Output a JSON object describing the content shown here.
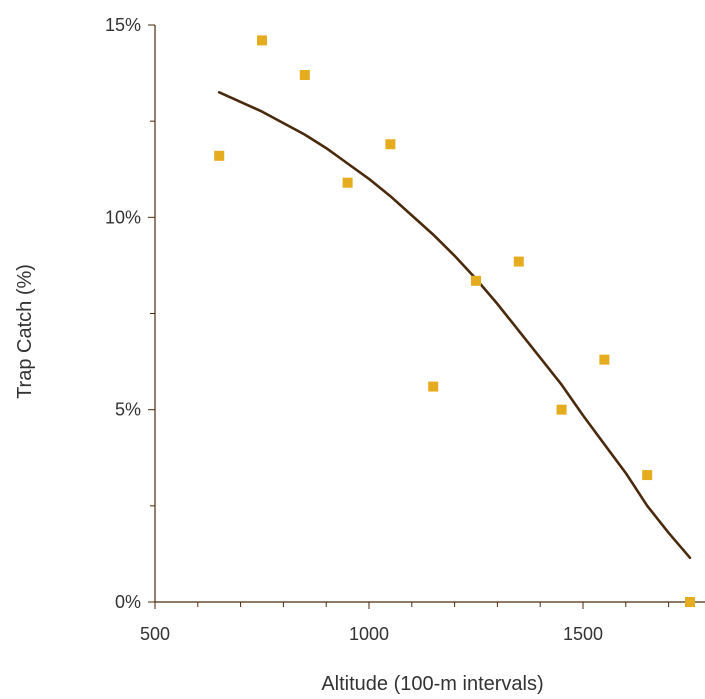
{
  "chart_data": {
    "type": "scatter",
    "title": "",
    "xlabel": "Altitude (100-m intervals)",
    "ylabel": "Trap Catch (%)",
    "xlim": [
      500,
      1750
    ],
    "ylim": [
      0,
      15
    ],
    "x_ticks": [
      {
        "value": 500,
        "label": "500"
      },
      {
        "value": 1000,
        "label": "1000"
      },
      {
        "value": 1500,
        "label": "1500"
      }
    ],
    "x_minor_step": 100,
    "y_ticks": [
      {
        "value": 0,
        "label": "0%"
      },
      {
        "value": 5,
        "label": "5%"
      },
      {
        "value": 10,
        "label": "10%"
      },
      {
        "value": 15,
        "label": "15%"
      }
    ],
    "y_minor_step": 2.5,
    "grid": false,
    "legend": "none",
    "series": [
      {
        "kind": "points",
        "marker": "square",
        "color": "#e6ac1f",
        "x": [
          650,
          750,
          850,
          950,
          1050,
          1150,
          1250,
          1350,
          1450,
          1550,
          1650,
          1750
        ],
        "y": [
          11.6,
          14.6,
          13.7,
          10.9,
          11.9,
          5.6,
          8.35,
          8.85,
          5.0,
          6.3,
          3.3,
          0.0
        ]
      },
      {
        "kind": "fit",
        "color": "#4a2a0c",
        "x": [
          650,
          700,
          750,
          800,
          850,
          900,
          950,
          1000,
          1050,
          1100,
          1150,
          1200,
          1250,
          1300,
          1350,
          1400,
          1450,
          1500,
          1550,
          1600,
          1650,
          1700,
          1750
        ],
        "y": [
          13.25,
          13.0,
          12.75,
          12.45,
          12.15,
          11.8,
          11.4,
          11.0,
          10.55,
          10.05,
          9.55,
          9.0,
          8.4,
          7.75,
          7.05,
          6.35,
          5.65,
          4.85,
          4.1,
          3.35,
          2.5,
          1.8,
          1.15
        ]
      }
    ]
  }
}
